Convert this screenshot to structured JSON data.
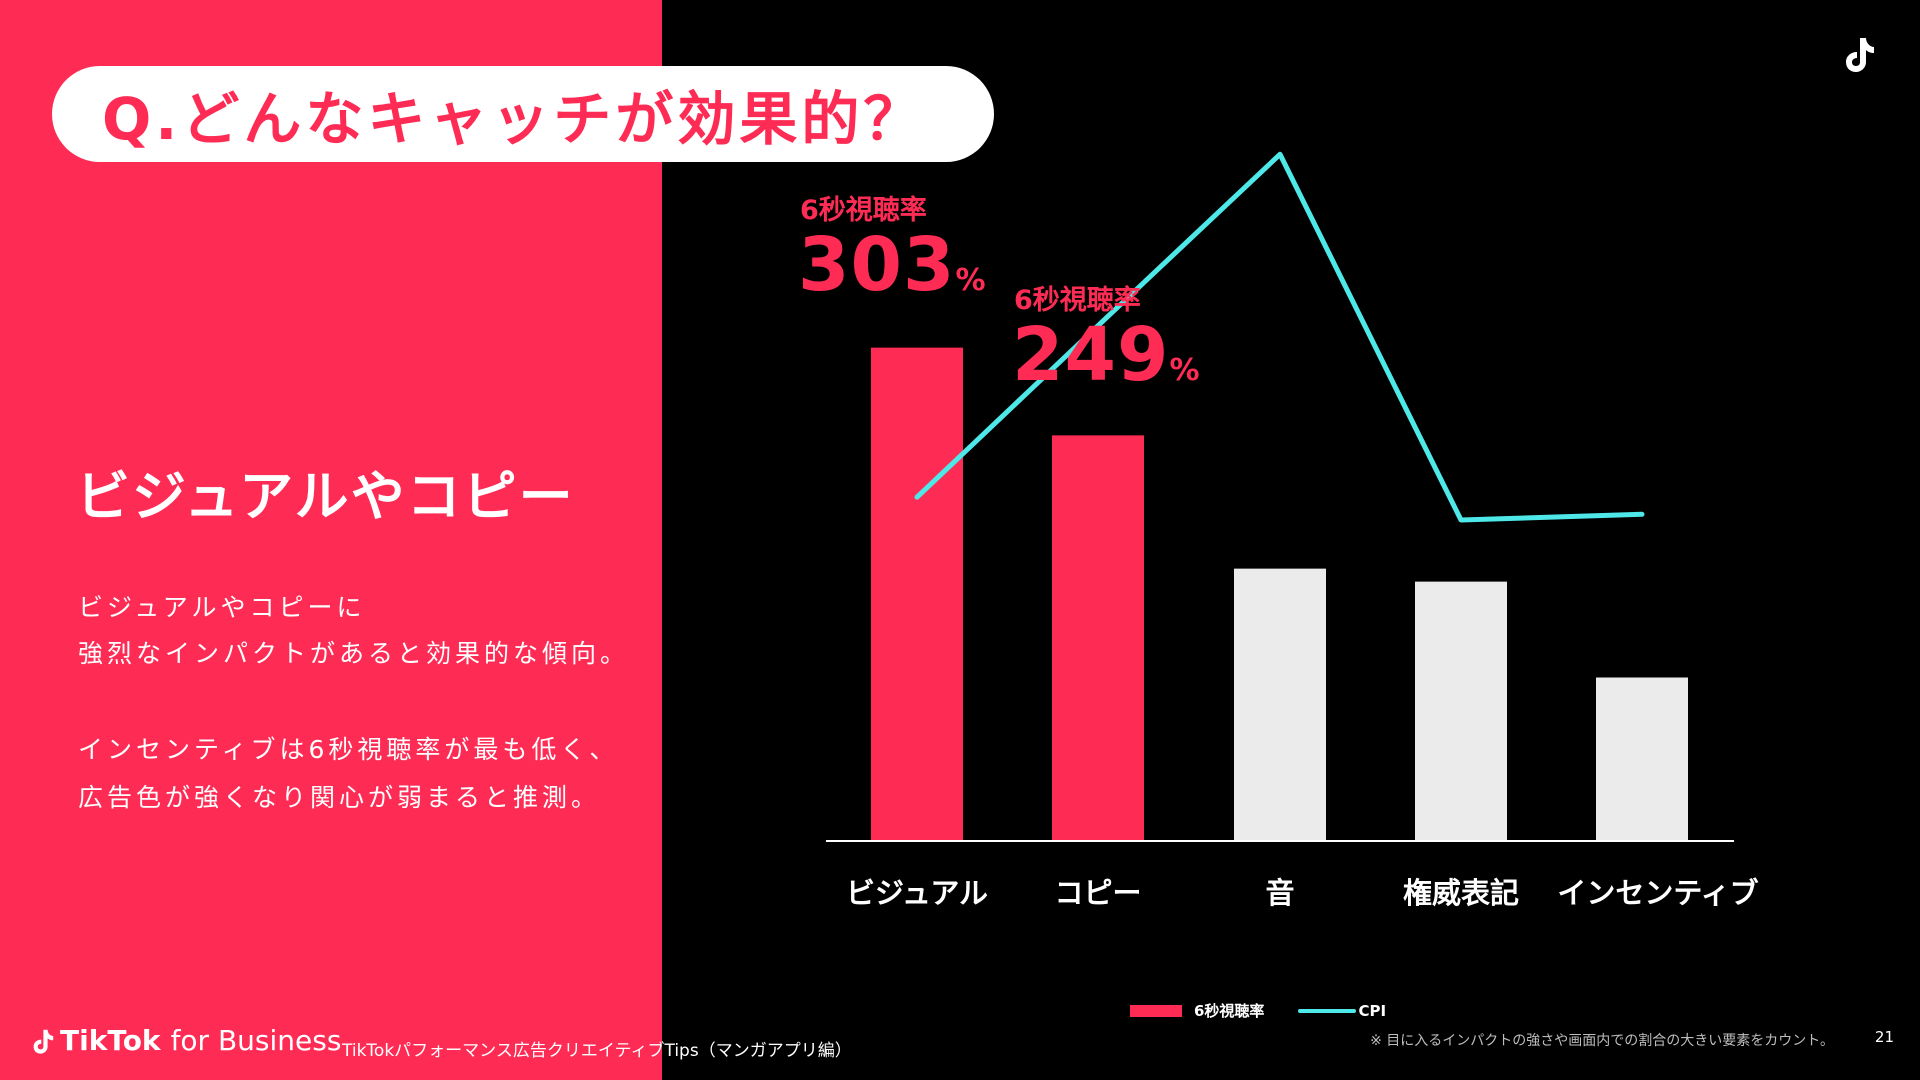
{
  "title": "Q.どんなキャッチが効果的？",
  "left": {
    "heading": "ビジュアルやコピー",
    "paragraph1_line1": "ビジュアルやコピーに",
    "paragraph1_line2": "強烈なインパクトがあると効果的な傾向。",
    "paragraph2_line1": "インセンティブは6秒視聴率が最も低く、",
    "paragraph2_line2": "広告色が強くなり関心が弱まると推測。"
  },
  "highlights": [
    {
      "label": "6秒視聴率",
      "value": "303",
      "unit": "%"
    },
    {
      "label": "6秒視聴率",
      "value": "249",
      "unit": "%"
    }
  ],
  "chart_data": {
    "type": "bar",
    "categories": [
      "ビジュアル",
      "コピー",
      "音",
      "権威表記",
      "インセンティブ"
    ],
    "series": [
      {
        "name": "6秒視聴率",
        "values": [
          303,
          249,
          167,
          159,
          100
        ],
        "colors": [
          "#fe2c55",
          "#fe2c55",
          "#ebebeb",
          "#ebebeb",
          "#ebebeb"
        ]
      },
      {
        "name": "CPI",
        "type": "line",
        "color": "#4ee8e8",
        "values": [
          60,
          90,
          120,
          56,
          57
        ]
      }
    ],
    "bar_ylim": [
      0,
      320
    ],
    "line_ylim": [
      0,
      140
    ],
    "legend": [
      "6秒視聴率",
      "CPI"
    ]
  },
  "footer": {
    "brand": "TikTok",
    "brand_suffix": "for Business",
    "subtitle": "TikTokパフォーマンス広告クリエイティブTips（マンガアプリ編）",
    "footnote": "※ 目に入るインパクトの強さや画面内での割合の大きい要素をカウント。",
    "page": "21"
  },
  "colors": {
    "accent": "#fe2c55",
    "line": "#4ee8e8",
    "bar_gray": "#ebebeb"
  }
}
